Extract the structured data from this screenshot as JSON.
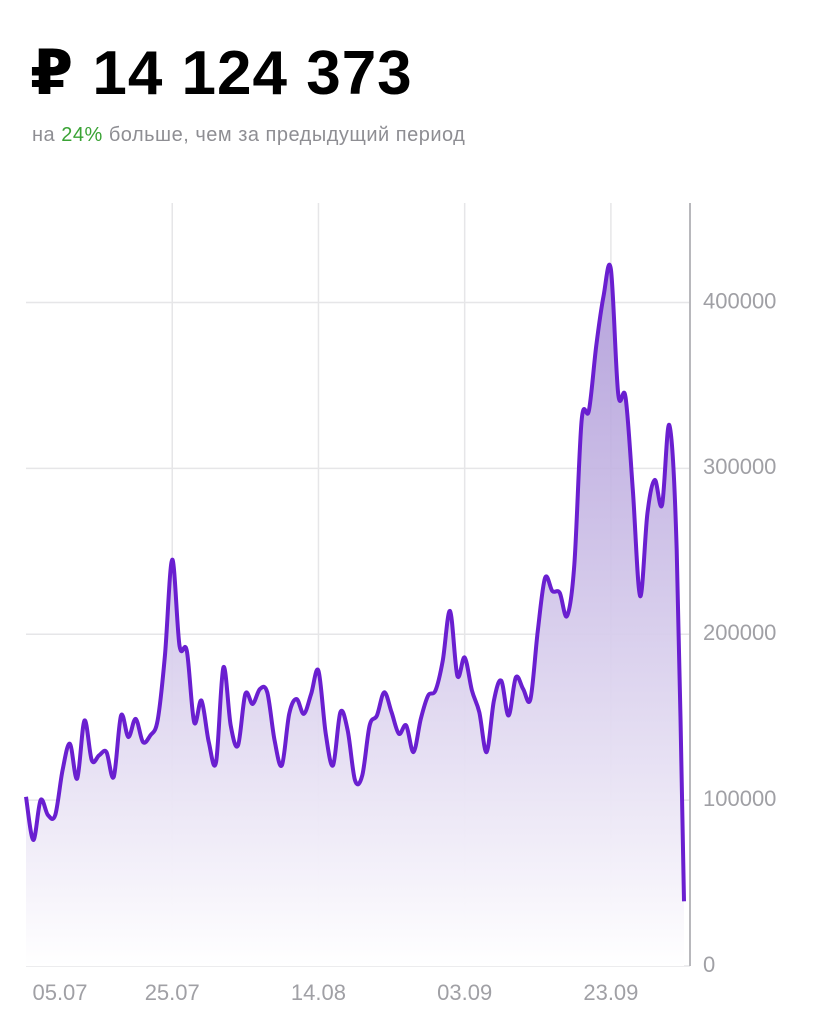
{
  "header": {
    "amount": "₽ 14 124 373",
    "subtitle": [
      "на",
      "24%",
      "больше, чем за предыдущий период"
    ]
  },
  "chart_data": {
    "type": "area",
    "color": "#6a1fd0",
    "grid": true,
    "categories": [
      "05.07",
      null,
      null,
      null,
      null,
      null,
      null,
      null,
      null,
      null,
      null,
      null,
      null,
      null,
      null,
      null,
      null,
      null,
      null,
      null,
      "25.07",
      null,
      null,
      null,
      null,
      null,
      null,
      null,
      null,
      null,
      null,
      null,
      null,
      null,
      null,
      null,
      null,
      null,
      null,
      null,
      "14.08",
      null,
      null,
      null,
      null,
      null,
      null,
      null,
      null,
      null,
      null,
      null,
      null,
      null,
      null,
      null,
      null,
      null,
      null,
      null,
      "03.09",
      null,
      null,
      null,
      null,
      null,
      null,
      null,
      null,
      null,
      null,
      null,
      null,
      null,
      null,
      null,
      null,
      null,
      null,
      null,
      "23.09",
      null,
      null,
      null,
      null,
      null,
      null,
      null,
      null,
      null,
      null
    ],
    "values": [
      102000,
      76000,
      100000,
      91000,
      91000,
      118000,
      134000,
      113000,
      148000,
      124000,
      127000,
      129000,
      114000,
      151000,
      138000,
      149000,
      135000,
      139000,
      148000,
      187000,
      245000,
      193000,
      190000,
      147000,
      160000,
      135000,
      123000,
      180000,
      145000,
      133000,
      164000,
      158000,
      167000,
      165000,
      136000,
      121000,
      152000,
      161000,
      152000,
      164000,
      178000,
      140000,
      121000,
      153000,
      142000,
      112000,
      115000,
      145000,
      151000,
      165000,
      153000,
      140000,
      145000,
      129000,
      149000,
      163000,
      166000,
      184000,
      214000,
      175000,
      186000,
      166000,
      153000,
      129000,
      160000,
      172000,
      151000,
      174000,
      167000,
      161000,
      202000,
      234000,
      226000,
      225000,
      211000,
      242000,
      329000,
      335000,
      374000,
      404000,
      420000,
      345000,
      343000,
      287000,
      223000,
      273000,
      293000,
      278000,
      326000,
      251000,
      39000
    ],
    "ylim": [
      0,
      460000
    ],
    "yticks": [
      0,
      100000,
      200000,
      300000,
      400000
    ]
  }
}
